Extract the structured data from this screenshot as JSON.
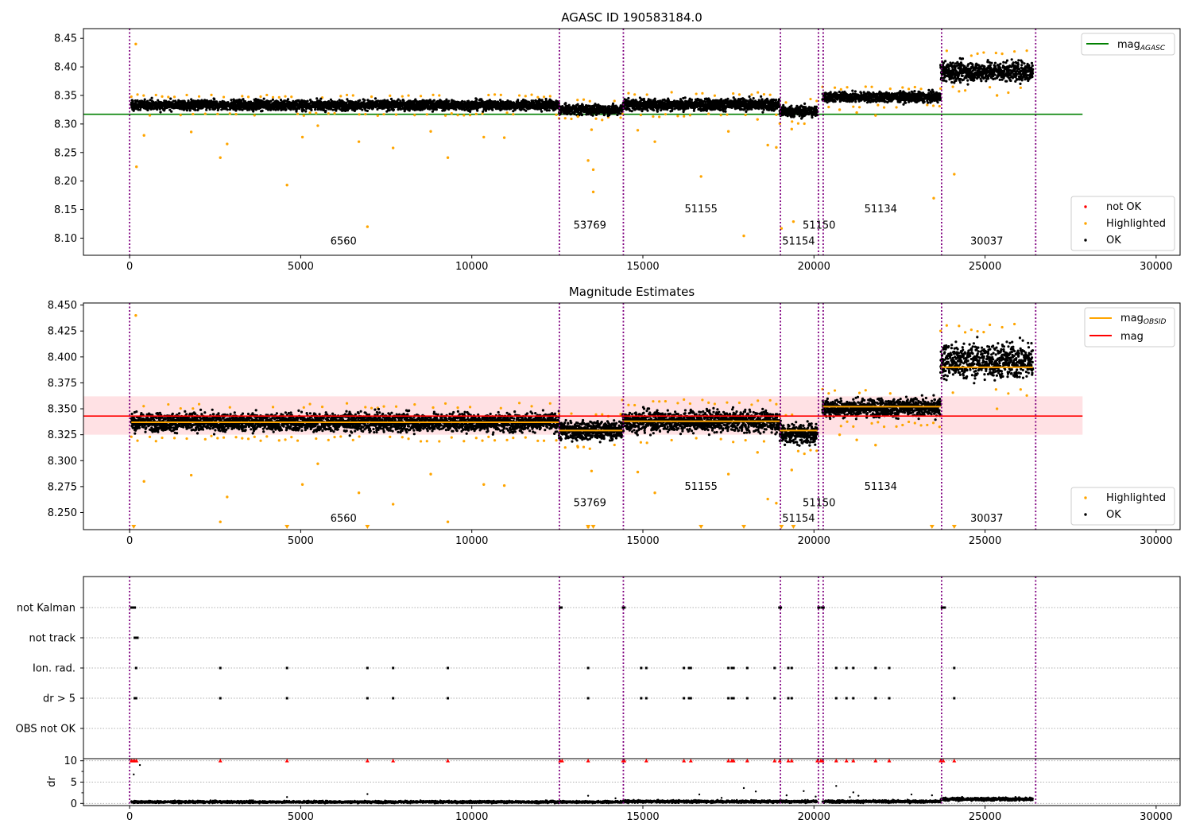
{
  "chart_data": [
    {
      "panel": "top",
      "type": "scatter",
      "title": "AGASC ID 190583184.0",
      "xlim": [
        -1350,
        30700
      ],
      "ylim": [
        8.07,
        8.467
      ],
      "xticks": [
        0,
        5000,
        10000,
        15000,
        20000,
        25000,
        30000
      ],
      "xtick_labels": [
        "0",
        "5000",
        "10000",
        "15000",
        "20000",
        "25000",
        "30000"
      ],
      "yticks": [
        8.1,
        8.15,
        8.2,
        8.25,
        8.3,
        8.35,
        8.4,
        8.45
      ],
      "ytick_labels": [
        "8.10",
        "8.15",
        "8.20",
        "8.25",
        "8.30",
        "8.35",
        "8.40",
        "8.45"
      ],
      "legend_upper": {
        "position": "top-right",
        "entries": [
          {
            "label": "mag",
            "sub": "AGASC",
            "color": "#008000",
            "marker": "line"
          }
        ]
      },
      "legend_lower": {
        "position": "bottom-right",
        "entries": [
          {
            "label": "not OK",
            "color": "#ff0000",
            "marker": "dot"
          },
          {
            "label": "Highlighted",
            "color": "#ffa500",
            "marker": "dot"
          },
          {
            "label": "OK",
            "color": "#000000",
            "marker": "dot"
          }
        ]
      },
      "reference_lines": [
        {
          "name": "mag_AGASC",
          "y": 8.317,
          "x_range": [
            -1350,
            27850
          ],
          "color": "#008000"
        }
      ],
      "obsid_labels": [
        {
          "text": "6560",
          "x": 6250,
          "y": 8.089
        },
        {
          "text": "53769",
          "x": 13450,
          "y": 8.117
        },
        {
          "text": "51155",
          "x": 16700,
          "y": 8.145
        },
        {
          "text": "51150",
          "x": 20150,
          "y": 8.117
        },
        {
          "text": "51154",
          "x": 19550,
          "y": 8.089
        },
        {
          "text": "51134",
          "x": 21950,
          "y": 8.145
        },
        {
          "text": "30037",
          "x": 25050,
          "y": 8.089
        }
      ],
      "segments": [
        {
          "x": [
            50,
            12550
          ],
          "y": 8.333,
          "noise": 0.006
        },
        {
          "x": [
            12550,
            14400
          ],
          "y": 8.325,
          "noise": 0.006
        },
        {
          "x": [
            14400,
            19000
          ],
          "y": 8.334,
          "noise": 0.007
        },
        {
          "x": [
            19000,
            20100
          ],
          "y": 8.322,
          "noise": 0.007
        },
        {
          "x": [
            20250,
            23700
          ],
          "y": 8.347,
          "noise": 0.006
        },
        {
          "x": [
            23700,
            26400
          ],
          "y": 8.392,
          "noise": 0.012
        }
      ],
      "highlighted_outliers": [
        {
          "x": 180,
          "y": 8.44
        },
        {
          "x": 200,
          "y": 8.225
        },
        {
          "x": 420,
          "y": 8.28
        },
        {
          "x": 1800,
          "y": 8.286
        },
        {
          "x": 2650,
          "y": 8.241
        },
        {
          "x": 2850,
          "y": 8.265
        },
        {
          "x": 4600,
          "y": 8.193
        },
        {
          "x": 5050,
          "y": 8.277
        },
        {
          "x": 5500,
          "y": 8.297
        },
        {
          "x": 6700,
          "y": 8.269
        },
        {
          "x": 6950,
          "y": 8.12
        },
        {
          "x": 7700,
          "y": 8.258
        },
        {
          "x": 8800,
          "y": 8.287
        },
        {
          "x": 9300,
          "y": 8.241
        },
        {
          "x": 10350,
          "y": 8.277
        },
        {
          "x": 10950,
          "y": 8.276
        },
        {
          "x": 13100,
          "y": 8.313
        },
        {
          "x": 13400,
          "y": 8.236
        },
        {
          "x": 13550,
          "y": 8.22
        },
        {
          "x": 13550,
          "y": 8.181
        },
        {
          "x": 13500,
          "y": 8.29
        },
        {
          "x": 14850,
          "y": 8.289
        },
        {
          "x": 15350,
          "y": 8.269
        },
        {
          "x": 16700,
          "y": 8.208
        },
        {
          "x": 17500,
          "y": 8.287
        },
        {
          "x": 17950,
          "y": 8.104
        },
        {
          "x": 18350,
          "y": 8.308
        },
        {
          "x": 18650,
          "y": 8.263
        },
        {
          "x": 18900,
          "y": 8.259
        },
        {
          "x": 19050,
          "y": 8.117
        },
        {
          "x": 19400,
          "y": 8.129
        },
        {
          "x": 19350,
          "y": 8.291
        },
        {
          "x": 20750,
          "y": 8.325
        },
        {
          "x": 21250,
          "y": 8.32
        },
        {
          "x": 21800,
          "y": 8.315
        },
        {
          "x": 23500,
          "y": 8.17
        },
        {
          "x": 24100,
          "y": 8.212
        },
        {
          "x": 25350,
          "y": 8.35
        }
      ]
    },
    {
      "panel": "middle",
      "type": "scatter",
      "title": "Magnitude Estimates",
      "xlim": [
        -1350,
        30700
      ],
      "ylim": [
        8.2335,
        8.452
      ],
      "xticks": [
        0,
        5000,
        10000,
        15000,
        20000,
        25000,
        30000
      ],
      "xtick_labels": [
        "0",
        "5000",
        "10000",
        "15000",
        "20000",
        "25000",
        "30000"
      ],
      "yticks": [
        8.25,
        8.275,
        8.3,
        8.325,
        8.35,
        8.375,
        8.4,
        8.425,
        8.45
      ],
      "ytick_labels": [
        "8.250",
        "8.275",
        "8.300",
        "8.325",
        "8.350",
        "8.375",
        "8.400",
        "8.425",
        "8.450"
      ],
      "legend_upper": {
        "position": "top-right",
        "entries": [
          {
            "label": "mag",
            "sub": "OBSID",
            "color": "#ffa500",
            "marker": "line"
          },
          {
            "label": "mag",
            "sub": "",
            "color": "#ff0000",
            "marker": "line"
          }
        ]
      },
      "legend_lower": {
        "position": "bottom-right",
        "entries": [
          {
            "label": "Highlighted",
            "color": "#ffa500",
            "marker": "dot"
          },
          {
            "label": "OK",
            "color": "#000000",
            "marker": "dot"
          }
        ]
      },
      "mag": {
        "y": 8.343,
        "band": [
          8.325,
          8.362
        ],
        "x_range": [
          -1350,
          27850
        ],
        "color": "#ff0000",
        "band_color": "#ffe1e4"
      },
      "obsid_mags": [
        {
          "x": [
            50,
            12550
          ],
          "y": 8.337
        },
        {
          "x": [
            12550,
            14400
          ],
          "y": 8.329
        },
        {
          "x": [
            14400,
            19000
          ],
          "y": 8.338
        },
        {
          "x": [
            19000,
            20100
          ],
          "y": 8.329
        },
        {
          "x": [
            20250,
            23700
          ],
          "y": 8.352
        },
        {
          "x": [
            23700,
            26400
          ],
          "y": 8.39
        }
      ],
      "obsid_labels": [
        {
          "text": "6560",
          "x": 6250,
          "y": 8.241
        },
        {
          "text": "53769",
          "x": 13450,
          "y": 8.256
        },
        {
          "text": "51155",
          "x": 16700,
          "y": 8.272
        },
        {
          "text": "51150",
          "x": 20150,
          "y": 8.256
        },
        {
          "text": "51154",
          "x": 19550,
          "y": 8.241
        },
        {
          "text": "51134",
          "x": 21950,
          "y": 8.272
        },
        {
          "text": "30037",
          "x": 25050,
          "y": 8.241
        }
      ],
      "below_axis_markers": [
        120,
        4600,
        6950,
        13400,
        13550,
        16700,
        17950,
        19050,
        19400,
        23450,
        24100
      ]
    },
    {
      "panel": "flags",
      "type": "scatter",
      "categories": [
        "not Kalman",
        "not track",
        "Ion. rad.",
        "dr > 5",
        "OBS not OK"
      ],
      "flags": {
        "not Kalman": [
          50,
          100,
          150,
          12580,
          12620,
          14420,
          14460,
          18990,
          19030,
          20130,
          20160,
          20240,
          20280,
          23740,
          23780,
          23820
        ],
        "not track": [
          150,
          190,
          230
        ],
        "Ion. rad.": [
          190,
          2650,
          4600,
          6950,
          7700,
          9300,
          13400,
          14950,
          15100,
          16200,
          16350,
          16400,
          17500,
          17600,
          17650,
          18050,
          18850,
          19250,
          19350,
          20650,
          20950,
          21150,
          21800,
          22200,
          24100
        ],
        "dr > 5": [
          150,
          190,
          2650,
          4600,
          6950,
          7700,
          9300,
          13400,
          14950,
          15100,
          16200,
          16350,
          16400,
          17500,
          17600,
          17650,
          18050,
          18850,
          19250,
          19350,
          20650,
          20950,
          21150,
          21800,
          22200,
          24100
        ],
        "OBS not OK": []
      }
    },
    {
      "panel": "dr",
      "type": "scatter",
      "ylabel": "dr",
      "ylim": [
        -0.5,
        10.5
      ],
      "yticks": [
        0,
        5,
        10
      ],
      "ytick_labels": [
        "0",
        "5",
        "10"
      ],
      "xticks": [
        0,
        5000,
        10000,
        15000,
        20000,
        25000,
        30000
      ],
      "xtick_labels": [
        "0",
        "5000",
        "10000",
        "15000",
        "20000",
        "25000",
        "30000"
      ],
      "capped_points": [
        50,
        100,
        150,
        200,
        2650,
        4600,
        6950,
        7700,
        9300,
        12580,
        12640,
        13400,
        14420,
        14460,
        15100,
        16200,
        16400,
        17500,
        17600,
        17650,
        18050,
        18850,
        19000,
        19250,
        19350,
        20100,
        20200,
        20250,
        20650,
        20950,
        21150,
        21800,
        22200,
        23700,
        23780,
        24100
      ],
      "scatter_points": [
        {
          "x": 120,
          "y": 6.8
        },
        {
          "x": 300,
          "y": 9.0
        },
        {
          "x": 4600,
          "y": 1.5
        },
        {
          "x": 6950,
          "y": 2.2
        },
        {
          "x": 13400,
          "y": 1.8
        },
        {
          "x": 14200,
          "y": 1.2
        },
        {
          "x": 16650,
          "y": 2.1
        },
        {
          "x": 17300,
          "y": 1.3
        },
        {
          "x": 17950,
          "y": 3.6
        },
        {
          "x": 18300,
          "y": 2.8
        },
        {
          "x": 19200,
          "y": 1.9
        },
        {
          "x": 19700,
          "y": 2.9
        },
        {
          "x": 20050,
          "y": 1.6
        },
        {
          "x": 20650,
          "y": 4.1
        },
        {
          "x": 21050,
          "y": 1.5
        },
        {
          "x": 21150,
          "y": 2.6
        },
        {
          "x": 21300,
          "y": 1.8
        },
        {
          "x": 22850,
          "y": 2.1
        },
        {
          "x": 23450,
          "y": 1.9
        }
      ],
      "baseline_segments": [
        {
          "x": [
            50,
            12550
          ],
          "level": 0.35,
          "noise": 0.3
        },
        {
          "x": [
            12550,
            14400
          ],
          "level": 0.35,
          "noise": 0.3
        },
        {
          "x": [
            14400,
            19000
          ],
          "level": 0.45,
          "noise": 0.35
        },
        {
          "x": [
            19000,
            20100
          ],
          "level": 0.45,
          "noise": 0.35
        },
        {
          "x": [
            20250,
            23700
          ],
          "level": 0.45,
          "noise": 0.35
        },
        {
          "x": [
            23700,
            26400
          ],
          "level": 1.0,
          "noise": 0.45
        }
      ]
    }
  ],
  "obsid_boundaries": [
    0,
    12560,
    14430,
    19020,
    20130,
    20270,
    23730,
    26480
  ],
  "colors": {
    "ok": "#000000",
    "highlighted": "#ffa500",
    "not_ok": "#ff0000",
    "boundary": "#800080",
    "agasc_line": "#008000",
    "mag_line": "#ff0000",
    "obsid_line": "#ffa500",
    "grid": "#b0b0b0"
  }
}
